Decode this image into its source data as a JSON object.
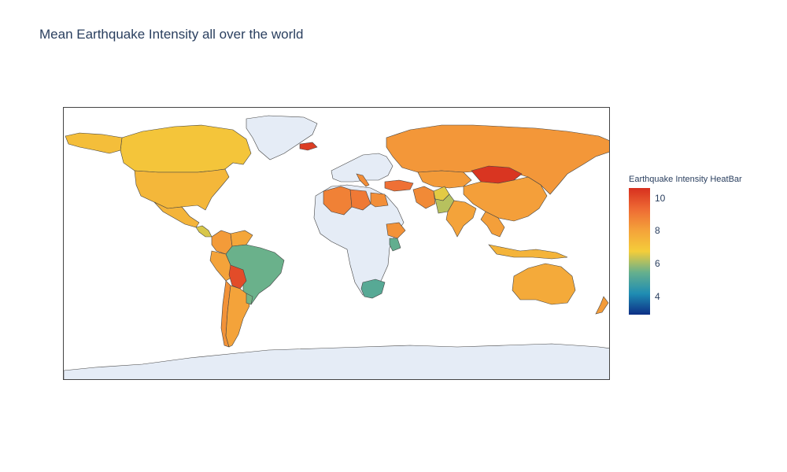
{
  "title": "Mean Earthquake Intensity all over the world",
  "legend": {
    "title": "Earthquake Intensity HeatBar",
    "ticks": [
      "4",
      "6",
      "8",
      "10"
    ],
    "tick_values": [
      4,
      6,
      8,
      10
    ],
    "range": [
      2.9,
      10.6
    ],
    "colorscale": [
      "#0d2f86",
      "#1f8db3",
      "#66b08d",
      "#f4cd3a",
      "#f4a23a",
      "#ee6b34",
      "#d7301f"
    ]
  },
  "no_data_color": "#e5ecf6",
  "chart_data": {
    "type": "choropleth",
    "title": "Mean Earthquake Intensity all over the world",
    "colorbar_title": "Earthquake Intensity HeatBar",
    "regions": [
      {
        "name": "Canada",
        "value": 7.0
      },
      {
        "name": "Greenland",
        "value": null
      },
      {
        "name": "Alaska",
        "value": 7.2
      },
      {
        "name": "United States",
        "value": 7.4
      },
      {
        "name": "Mexico",
        "value": 7.5
      },
      {
        "name": "Central America",
        "value": 6.5
      },
      {
        "name": "Colombia",
        "value": 8.2
      },
      {
        "name": "Venezuela",
        "value": 7.9
      },
      {
        "name": "Peru",
        "value": 8.0
      },
      {
        "name": "Brazil",
        "value": 5.5
      },
      {
        "name": "Bolivia",
        "value": 10.0
      },
      {
        "name": "Chile",
        "value": 8.4
      },
      {
        "name": "Argentina",
        "value": 8.0
      },
      {
        "name": "Uruguay",
        "value": 5.6
      },
      {
        "name": "Iceland",
        "value": 10.3
      },
      {
        "name": "Russia",
        "value": 8.3
      },
      {
        "name": "Mongolia",
        "value": 10.5
      },
      {
        "name": "China",
        "value": 8.1
      },
      {
        "name": "Kazakhstan",
        "value": 8.2
      },
      {
        "name": "Afghanistan",
        "value": 6.6
      },
      {
        "name": "Pakistan",
        "value": 6.2
      },
      {
        "name": "Iran",
        "value": 8.6
      },
      {
        "name": "Turkey",
        "value": 9.2
      },
      {
        "name": "India",
        "value": 8.0
      },
      {
        "name": "Southeast Asia",
        "value": 8.1
      },
      {
        "name": "Indonesia",
        "value": 7.5
      },
      {
        "name": "Australia",
        "value": 7.8
      },
      {
        "name": "New Zealand",
        "value": 8.2
      },
      {
        "name": "Algeria",
        "value": 8.8
      },
      {
        "name": "Libya",
        "value": 9.0
      },
      {
        "name": "Egypt",
        "value": 8.5
      },
      {
        "name": "Ethiopia",
        "value": 8.4
      },
      {
        "name": "Kenya",
        "value": 5.4
      },
      {
        "name": "South Africa",
        "value": 5.2
      },
      {
        "name": "Italy",
        "value": 8.5
      },
      {
        "name": "Antarctica",
        "value": null
      }
    ]
  }
}
